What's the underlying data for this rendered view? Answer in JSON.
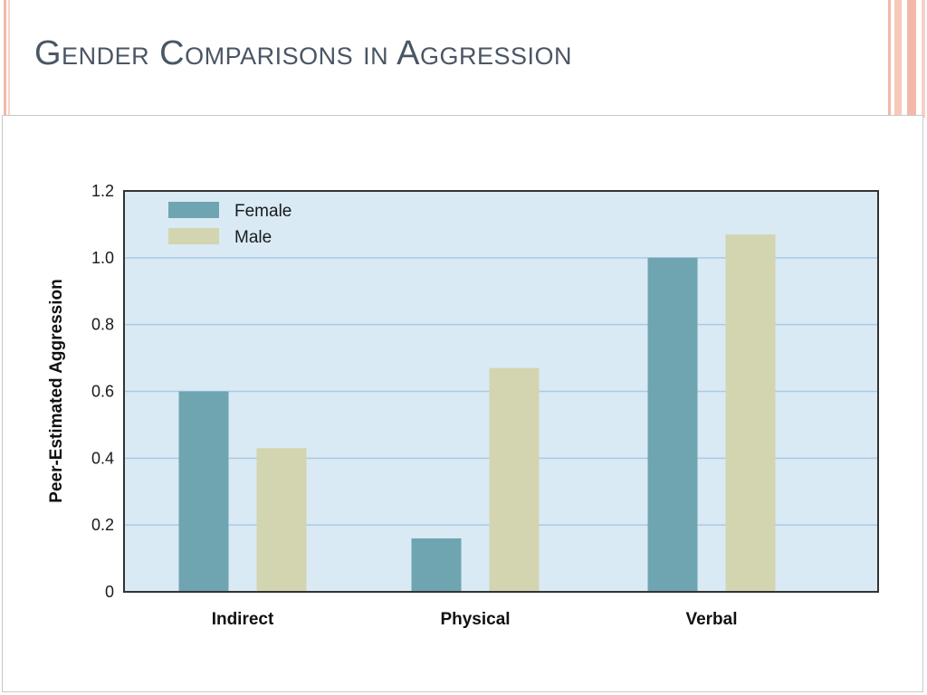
{
  "slide": {
    "title": "Gender Comparisons in Aggression"
  },
  "colors": {
    "female": "#6fa5b1",
    "male": "#d3d4b0",
    "plot_bg": "#d9eaf5",
    "grid": "#a8cbe3",
    "title": "#4a5665"
  },
  "chart_data": {
    "type": "bar",
    "title": "",
    "xlabel": "",
    "ylabel": "Peer-Estimated Aggression",
    "categories": [
      "Indirect",
      "Physical",
      "Verbal"
    ],
    "series": [
      {
        "name": "Female",
        "values": [
          0.6,
          0.16,
          1.0
        ]
      },
      {
        "name": "Male",
        "values": [
          0.43,
          0.67,
          1.07
        ]
      }
    ],
    "ylim": [
      0,
      1.2
    ],
    "yticks": [
      0,
      0.2,
      0.4,
      0.6,
      0.8,
      1.0,
      1.2
    ],
    "ytick_labels": [
      "0",
      "0.2",
      "0.4",
      "0.6",
      "0.8",
      "1.0",
      "1.2"
    ],
    "grid": true,
    "legend_position": "top-left"
  }
}
